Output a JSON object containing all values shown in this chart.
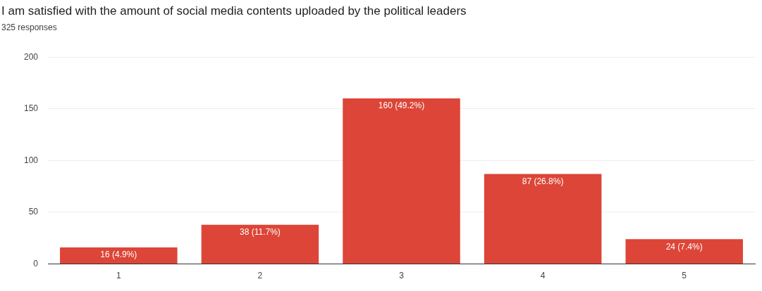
{
  "chart_data": {
    "type": "bar",
    "title": "I am satisfied with the amount of social media contents uploaded by the political leaders",
    "subtitle": "325 responses",
    "categories": [
      "1",
      "2",
      "3",
      "4",
      "5"
    ],
    "values": [
      16,
      38,
      160,
      87,
      24
    ],
    "value_labels": [
      "16 (4.9%)",
      "38 (11.7%)",
      "160 (49.2%)",
      "87 (26.8%)",
      "24 (7.4%)"
    ],
    "color": "#dc4537",
    "ylim": [
      0,
      200
    ],
    "yticks": [
      0,
      50,
      100,
      150,
      200
    ],
    "grid": "y",
    "legend": false
  }
}
